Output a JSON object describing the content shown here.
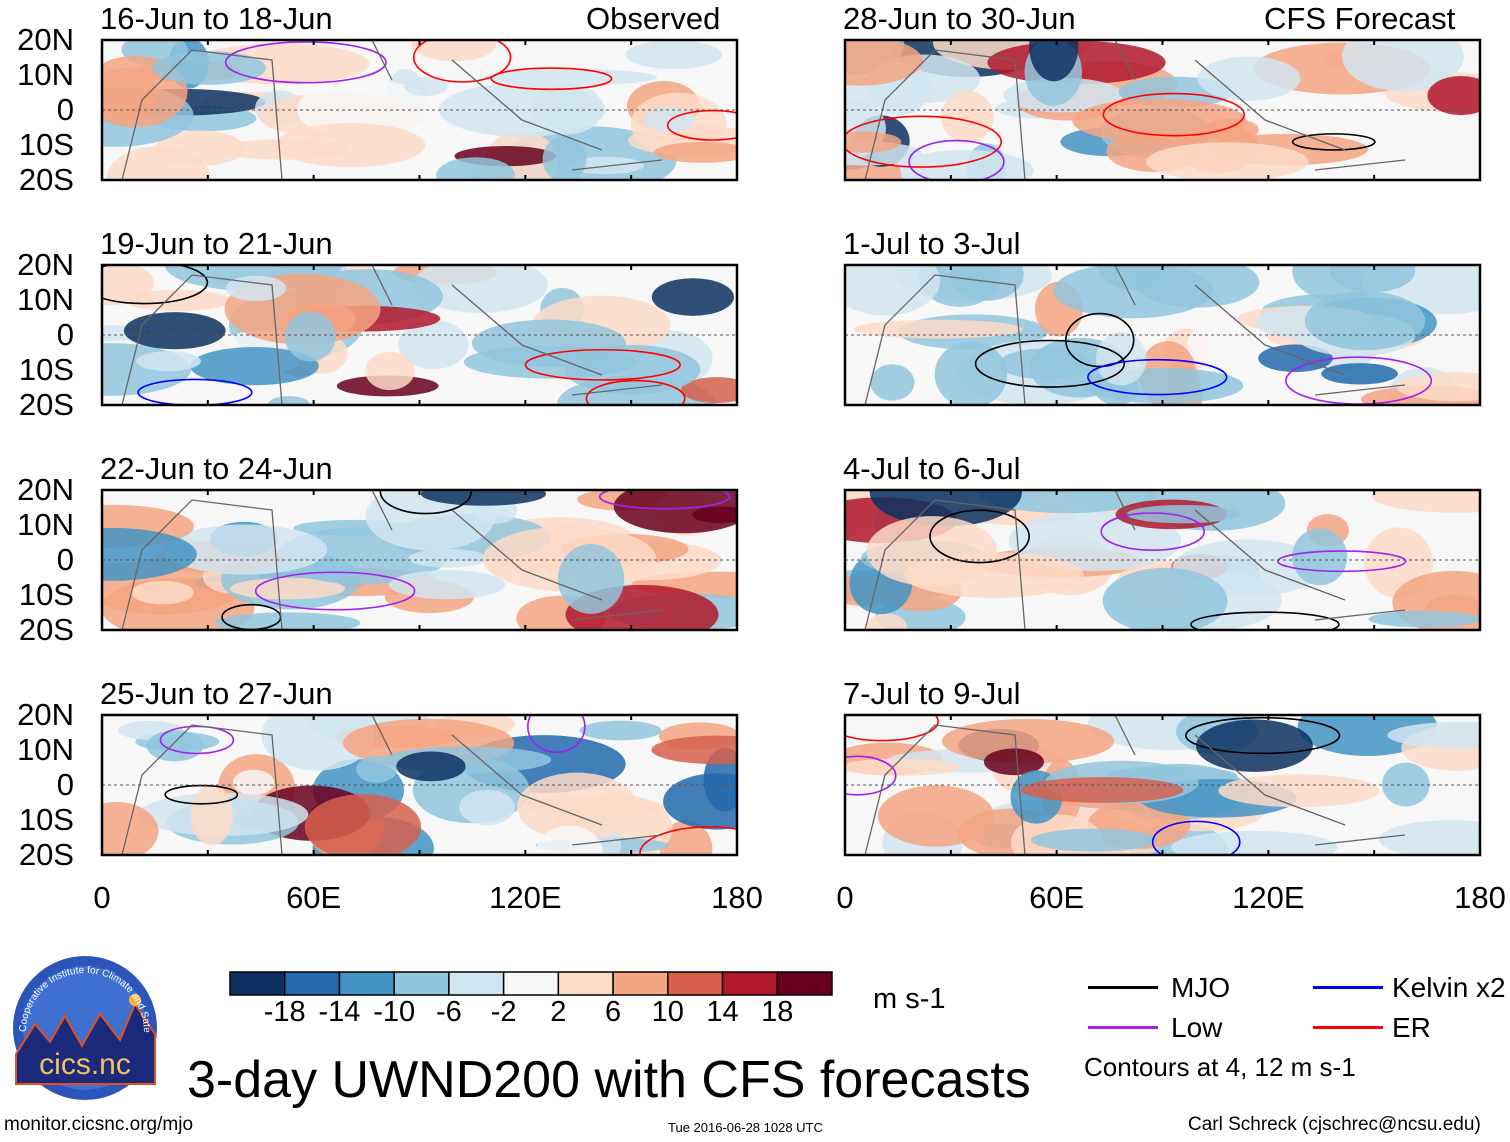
{
  "figure": {
    "title": "3-day UWND200 with CFS forecasts",
    "left_header": "Observed",
    "right_header": "CFS Forecast",
    "lat_labels": [
      "20N",
      "10N",
      "0",
      "10S",
      "20S"
    ],
    "lon_labels": [
      "0",
      "60E",
      "120E",
      "180"
    ],
    "panels_left": [
      {
        "title": "16-Jun to 18-Jun"
      },
      {
        "title": "19-Jun to 21-Jun"
      },
      {
        "title": "22-Jun to 24-Jun"
      },
      {
        "title": "25-Jun to 27-Jun"
      }
    ],
    "panels_right": [
      {
        "title": "28-Jun to 30-Jun"
      },
      {
        "title": "1-Jul to 3-Jul"
      },
      {
        "title": "4-Jul to 6-Jul"
      },
      {
        "title": "7-Jul to 9-Jul"
      }
    ]
  },
  "colorbar": {
    "labels": [
      "-18",
      "-14",
      "-10",
      "-6",
      "-2",
      "2",
      "6",
      "10",
      "14",
      "18"
    ],
    "colors": [
      "#0c3160",
      "#2268ad",
      "#4394c4",
      "#92c5de",
      "#d1e5f0",
      "#f7f7f7",
      "#fddbc7",
      "#f4a582",
      "#d6604d",
      "#b2182b",
      "#67001f"
    ],
    "units": "m s-1"
  },
  "legend": {
    "items": [
      {
        "label": "MJO",
        "color": "#000000"
      },
      {
        "label": "Kelvin x2",
        "color": "#0000ff"
      },
      {
        "label": "Low",
        "color": "#a020f0"
      },
      {
        "label": "ER",
        "color": "#ff0000"
      }
    ],
    "note": "Contours at 4, 12 m s-1"
  },
  "footer": {
    "logo_text": "cics.nc",
    "logo_ring": "Cooperative Institute for Climate and Satellites",
    "url": "monitor.cicsnc.org/mjo",
    "timestamp": "Tue 2016-06-28 1028 UTC",
    "credit": "Carl Schreck (cjschrec@ncsu.edu)"
  }
}
